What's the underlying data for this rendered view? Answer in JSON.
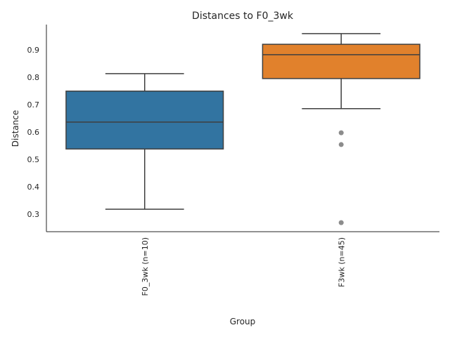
{
  "chart_data": {
    "type": "box",
    "title": "Distances to F0_3wk",
    "xlabel": "Group",
    "ylabel": "Distance",
    "ylim": [
      0.236,
      0.992
    ],
    "yticks": [
      0.3,
      0.4,
      0.5,
      0.6,
      0.7,
      0.8,
      0.9
    ],
    "ytick_labels": [
      "0.3",
      "0.4",
      "0.5",
      "0.6",
      "0.7",
      "0.8",
      "0.9"
    ],
    "categories": [
      "F0_3wk (n=10)",
      "F3wk (n=45)"
    ],
    "boxes": [
      {
        "name": "F0_3wk (n=10)",
        "color": "#3274a1",
        "whisker_low": 0.318,
        "q1": 0.538,
        "median": 0.636,
        "q3": 0.749,
        "whisker_high": 0.813,
        "outliers": []
      },
      {
        "name": "F3wk (n=45)",
        "color": "#e1812c",
        "whisker_low": 0.685,
        "q1": 0.795,
        "median": 0.882,
        "q3": 0.92,
        "whisker_high": 0.959,
        "outliers": [
          0.597,
          0.554,
          0.269
        ]
      }
    ],
    "grid": false,
    "line_color": "#3f3f3f",
    "outlier_color": "#8c8c8c"
  }
}
